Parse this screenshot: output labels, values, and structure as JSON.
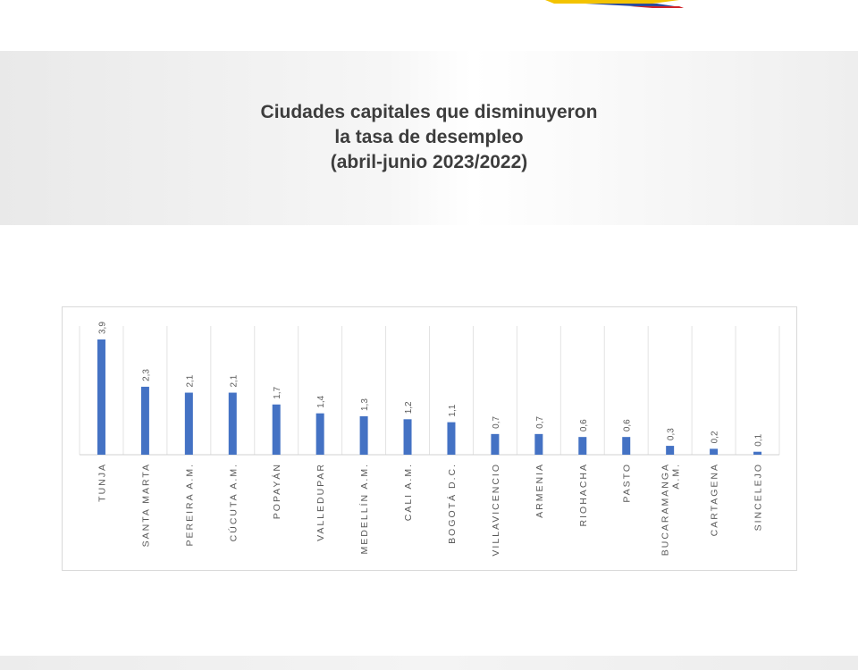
{
  "title_lines": [
    "Ciudades capitales que disminuyeron",
    "la tasa de desempleo",
    "(abril-junio 2023/2022)"
  ],
  "colors": {
    "bar": "#4472c4",
    "flag_yellow": "#f3c300",
    "flag_blue": "#2b4a9c",
    "flag_red": "#d0242b"
  },
  "chart_data": {
    "type": "bar",
    "categories": [
      "TUNJA",
      "SANTA MARTA",
      "PEREIRA A.M.",
      "CÚCUTA A.M.",
      "POPAYÁN",
      "VALLEDUPAR",
      "MEDELLÍN A.M.",
      "CALI A.M.",
      "BOGOTÁ D.C.",
      "VILLAVICENCIO",
      "ARMENIA",
      "RIOHACHA",
      "PASTO",
      "BUCARAMANGA A.M.",
      "CARTAGENA",
      "SINCELEJO"
    ],
    "values": [
      3.9,
      2.3,
      2.1,
      2.1,
      1.7,
      1.4,
      1.3,
      1.2,
      1.1,
      0.7,
      0.7,
      0.6,
      0.6,
      0.3,
      0.2,
      0.1
    ],
    "data_labels": [
      "3,9",
      "2,3",
      "2,1",
      "2,1",
      "1,7",
      "1,4",
      "1,3",
      "1,2",
      "1,1",
      "0,7",
      "0,7",
      "0,6",
      "0,6",
      "0,3",
      "0,2",
      "0,1"
    ],
    "title": "",
    "xlabel": "",
    "ylabel": "",
    "ylim": [
      0,
      4
    ],
    "grid": "vertical category separators",
    "legend": "none"
  }
}
